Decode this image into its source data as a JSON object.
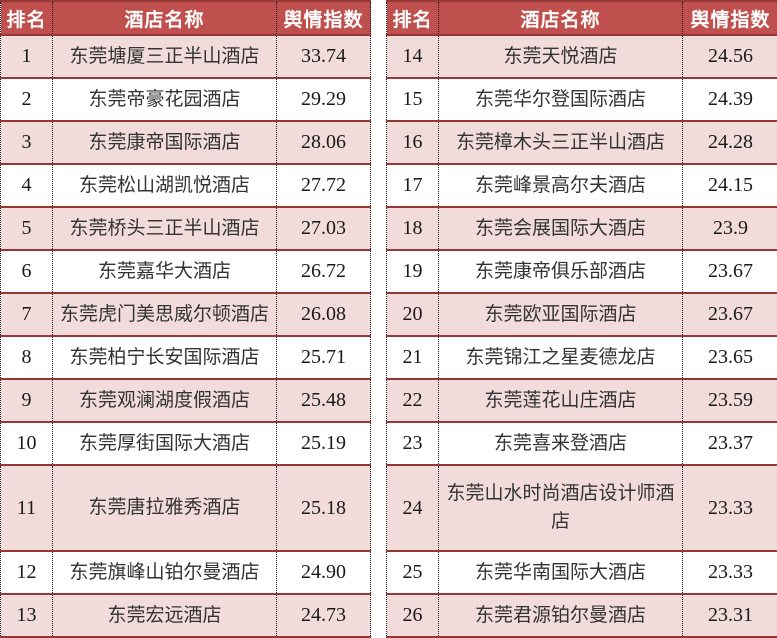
{
  "columns": {
    "rank": "排名",
    "hotel": "酒店名称",
    "index": "舆情指数"
  },
  "style": {
    "header_bg": "#C0504D",
    "header_text": "#FFFFFF",
    "row_alt_bg": "#F2DCDB",
    "row_bg": "#FFFFFF",
    "rule_color": "#953734",
    "divider_color": "#1A1A1A"
  },
  "tables": [
    {
      "rows": [
        {
          "rank": "1",
          "hotel": "东莞塘厦三正半山酒店",
          "index": "33.74"
        },
        {
          "rank": "2",
          "hotel": "东莞帝豪花园酒店",
          "index": "29.29"
        },
        {
          "rank": "3",
          "hotel": "东莞康帝国际酒店",
          "index": "28.06"
        },
        {
          "rank": "4",
          "hotel": "东莞松山湖凯悦酒店",
          "index": "27.72"
        },
        {
          "rank": "5",
          "hotel": "东莞桥头三正半山酒店",
          "index": "27.03"
        },
        {
          "rank": "6",
          "hotel": "东莞嘉华大酒店",
          "index": "26.72"
        },
        {
          "rank": "7",
          "hotel": "东莞虎门美思威尔顿酒店",
          "index": "26.08"
        },
        {
          "rank": "8",
          "hotel": "东莞柏宁长安国际酒店",
          "index": "25.71"
        },
        {
          "rank": "9",
          "hotel": "东莞观澜湖度假酒店",
          "index": "25.48"
        },
        {
          "rank": "10",
          "hotel": "东莞厚街国际大酒店",
          "index": "25.19"
        },
        {
          "rank": "11",
          "hotel": "东莞唐拉雅秀酒店",
          "index": "25.18"
        },
        {
          "rank": "12",
          "hotel": "东莞旗峰山铂尔曼酒店",
          "index": "24.90"
        },
        {
          "rank": "13",
          "hotel": "东莞宏远酒店",
          "index": "24.73"
        }
      ]
    },
    {
      "rows": [
        {
          "rank": "14",
          "hotel": "东莞天悦酒店",
          "index": "24.56"
        },
        {
          "rank": "15",
          "hotel": "东莞华尔登国际酒店",
          "index": "24.39"
        },
        {
          "rank": "16",
          "hotel": "东莞樟木头三正半山酒店",
          "index": "24.28"
        },
        {
          "rank": "17",
          "hotel": "东莞峰景高尔夫酒店",
          "index": "24.15"
        },
        {
          "rank": "18",
          "hotel": "东莞会展国际大酒店",
          "index": "23.9"
        },
        {
          "rank": "19",
          "hotel": "东莞康帝俱乐部酒店",
          "index": "23.67"
        },
        {
          "rank": "20",
          "hotel": "东莞欧亚国际酒店",
          "index": "23.67"
        },
        {
          "rank": "21",
          "hotel": "东莞锦江之星麦德龙店",
          "index": "23.65"
        },
        {
          "rank": "22",
          "hotel": "东莞莲花山庄酒店",
          "index": "23.59"
        },
        {
          "rank": "23",
          "hotel": "东莞喜来登酒店",
          "index": "23.37"
        },
        {
          "rank": "24",
          "hotel": "东莞山水时尚酒店设计师酒店",
          "index": "23.33"
        },
        {
          "rank": "25",
          "hotel": "东莞华南国际大酒店",
          "index": "23.33"
        },
        {
          "rank": "26",
          "hotel": "东莞君源铂尔曼酒店",
          "index": "23.31"
        }
      ]
    }
  ]
}
